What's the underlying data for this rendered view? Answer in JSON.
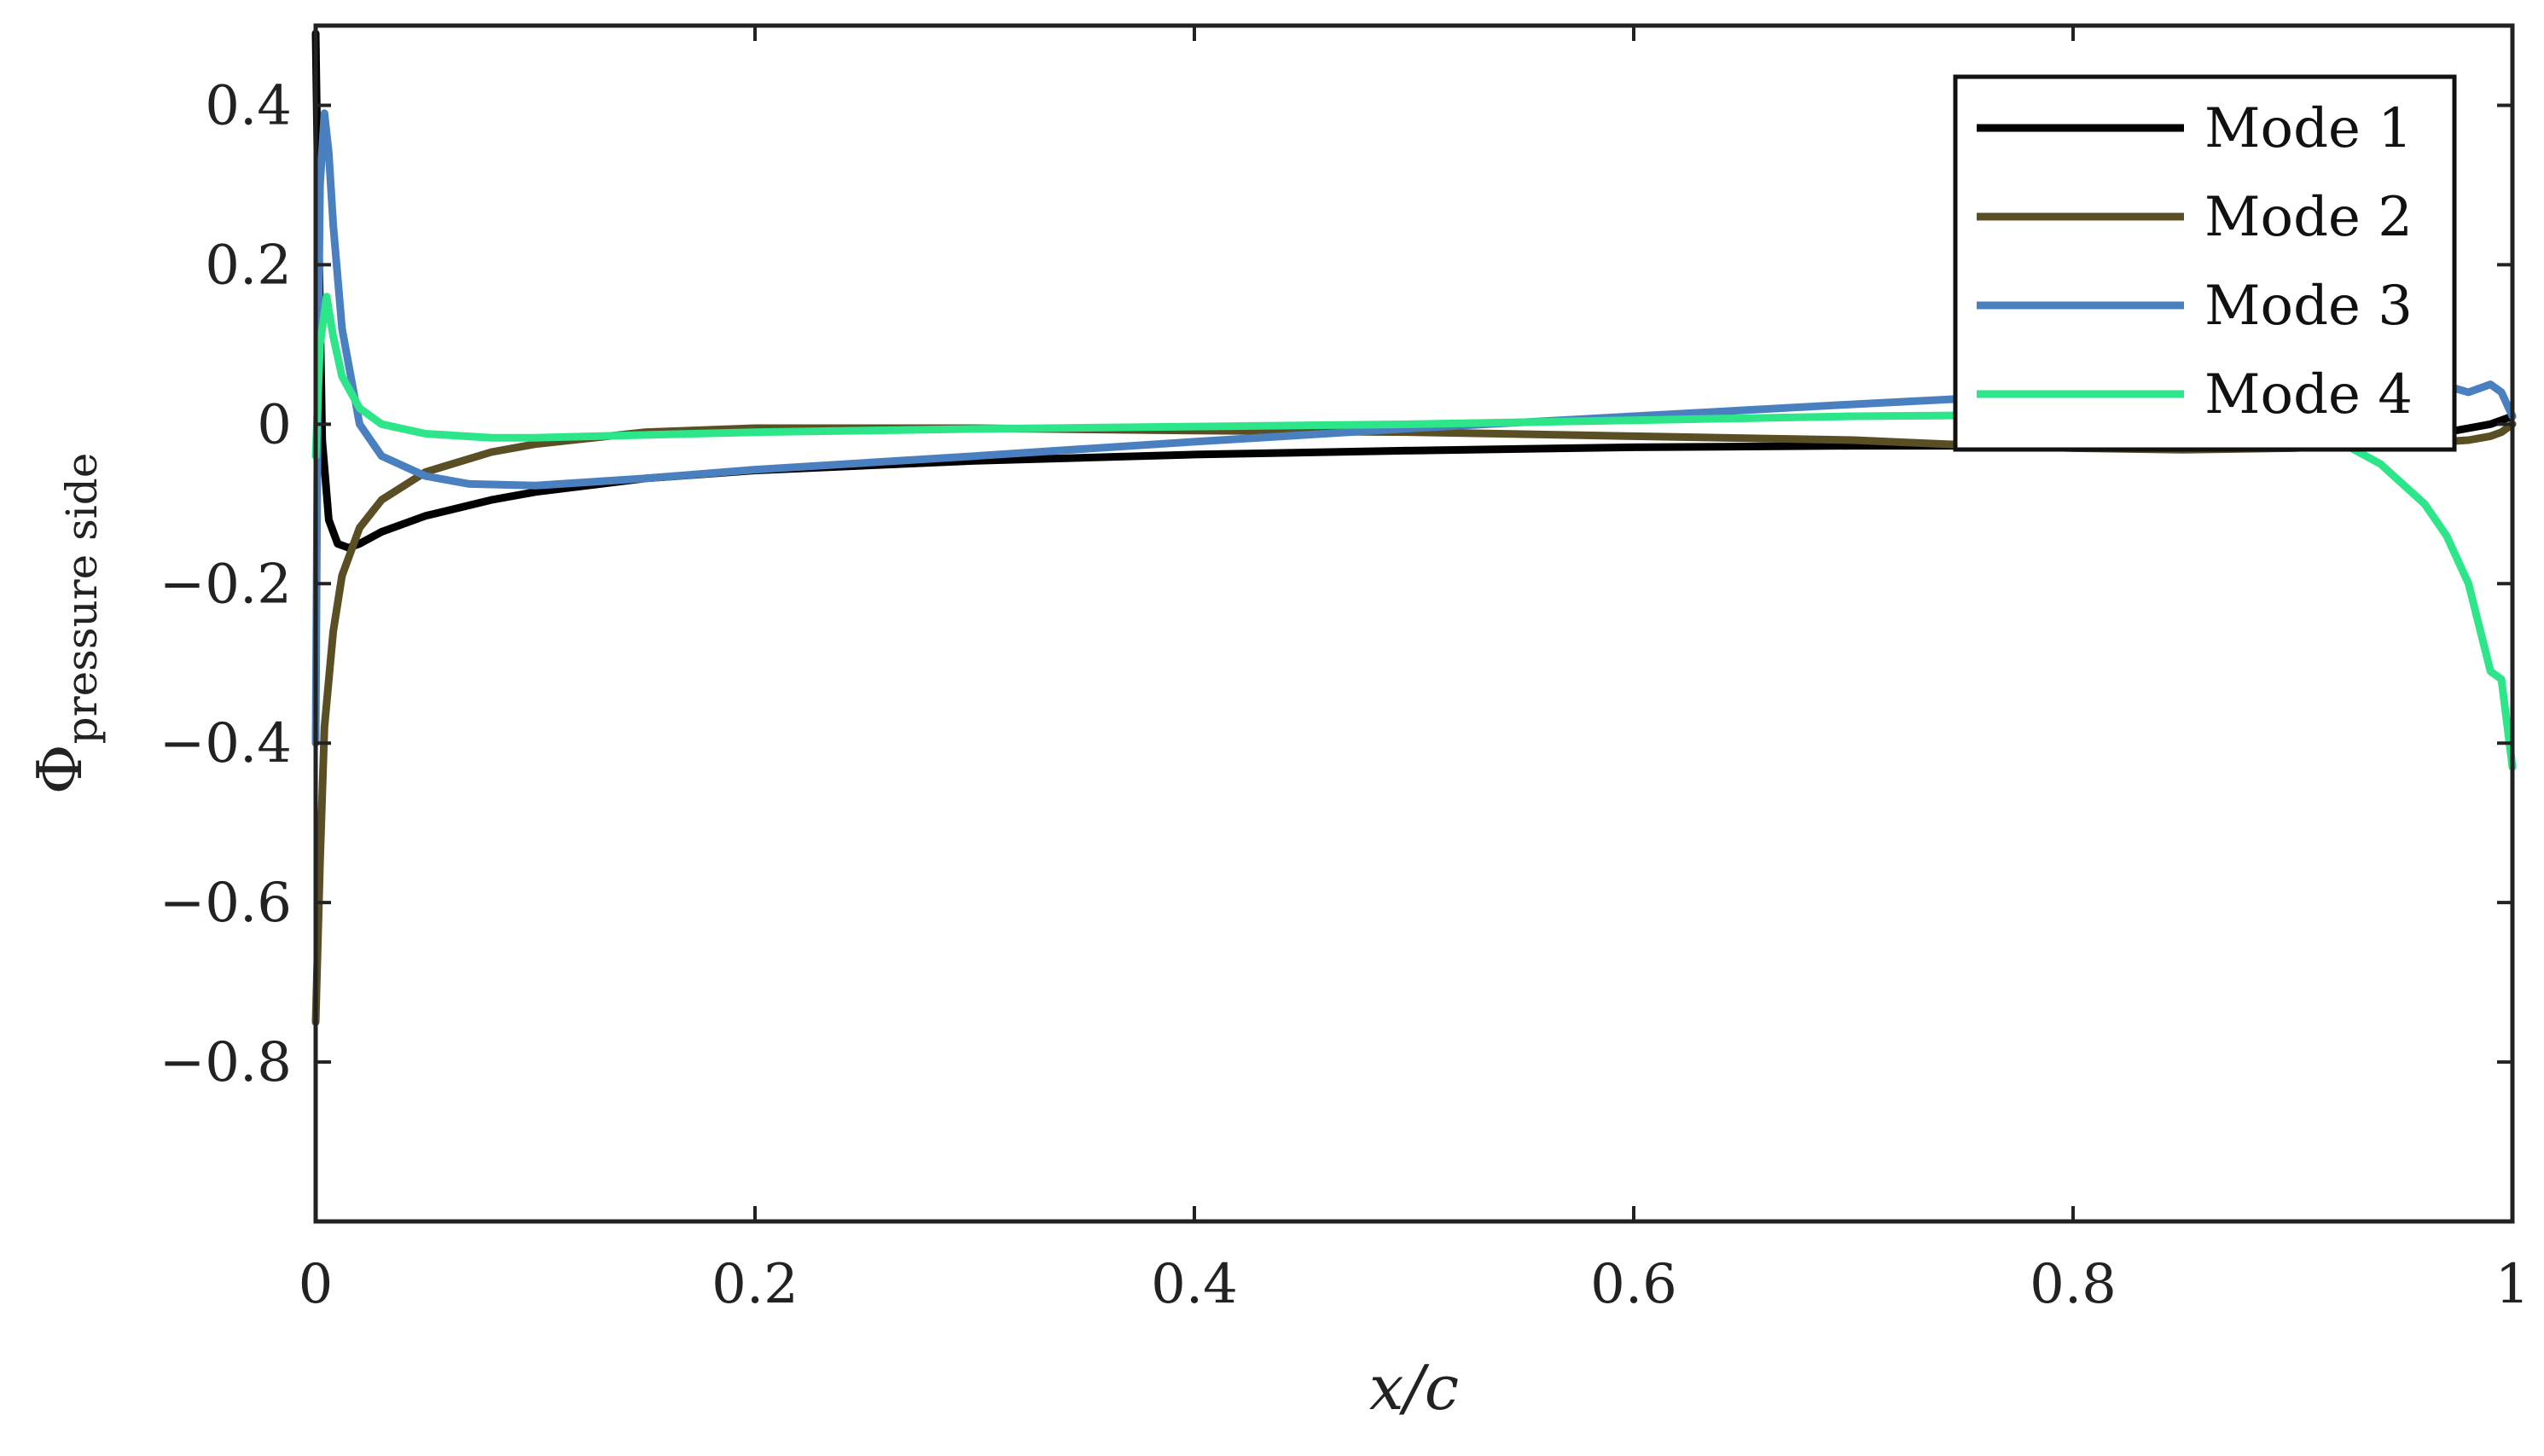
{
  "chart_data": {
    "type": "line",
    "xlabel": "x/c",
    "ylabel": "Φ",
    "ylabel_subscript": "pressure side",
    "xlim": [
      0,
      1
    ],
    "ylim": [
      -1.0,
      0.5
    ],
    "xticks": [
      0,
      0.2,
      0.4,
      0.6,
      0.8,
      1
    ],
    "xtick_labels": [
      "0",
      "0.2",
      "0.4",
      "0.6",
      "0.8",
      "1"
    ],
    "yticks": [
      0.4,
      0.2,
      0,
      -0.2,
      -0.4,
      -0.6,
      -0.8
    ],
    "ytick_labels": [
      "0.4",
      "0.2",
      "0",
      "−0.2",
      "−0.4",
      "−0.6",
      "−0.8"
    ],
    "grid": false,
    "legend_position": "top-right",
    "series": [
      {
        "name": "Mode 1",
        "color": "#000000",
        "points": [
          [
            0.0,
            0.49
          ],
          [
            0.001,
            0.3
          ],
          [
            0.003,
            -0.02
          ],
          [
            0.006,
            -0.12
          ],
          [
            0.01,
            -0.15
          ],
          [
            0.015,
            -0.155
          ],
          [
            0.02,
            -0.15
          ],
          [
            0.03,
            -0.135
          ],
          [
            0.05,
            -0.115
          ],
          [
            0.08,
            -0.095
          ],
          [
            0.1,
            -0.085
          ],
          [
            0.15,
            -0.068
          ],
          [
            0.2,
            -0.058
          ],
          [
            0.3,
            -0.046
          ],
          [
            0.4,
            -0.038
          ],
          [
            0.5,
            -0.033
          ],
          [
            0.6,
            -0.029
          ],
          [
            0.7,
            -0.027
          ],
          [
            0.8,
            -0.027
          ],
          [
            0.9,
            -0.025
          ],
          [
            0.95,
            -0.02
          ],
          [
            0.98,
            -0.005
          ],
          [
            0.99,
            0.0
          ],
          [
            0.995,
            0.005
          ],
          [
            1.0,
            0.01
          ]
        ]
      },
      {
        "name": "Mode 2",
        "color": "#5a4e25",
        "points": [
          [
            0.0,
            -0.75
          ],
          [
            0.002,
            -0.55
          ],
          [
            0.004,
            -0.38
          ],
          [
            0.008,
            -0.26
          ],
          [
            0.012,
            -0.19
          ],
          [
            0.02,
            -0.13
          ],
          [
            0.03,
            -0.095
          ],
          [
            0.05,
            -0.06
          ],
          [
            0.08,
            -0.035
          ],
          [
            0.1,
            -0.025
          ],
          [
            0.15,
            -0.01
          ],
          [
            0.2,
            -0.005
          ],
          [
            0.3,
            -0.005
          ],
          [
            0.4,
            -0.008
          ],
          [
            0.5,
            -0.01
          ],
          [
            0.6,
            -0.015
          ],
          [
            0.7,
            -0.02
          ],
          [
            0.75,
            -0.026
          ],
          [
            0.8,
            -0.03
          ],
          [
            0.85,
            -0.032
          ],
          [
            0.9,
            -0.03
          ],
          [
            0.95,
            -0.025
          ],
          [
            0.98,
            -0.02
          ],
          [
            0.99,
            -0.015
          ],
          [
            0.995,
            -0.01
          ],
          [
            1.0,
            0.0
          ]
        ]
      },
      {
        "name": "Mode 3",
        "color": "#4b80c0",
        "points": [
          [
            0.0,
            -0.4
          ],
          [
            0.001,
            0.05
          ],
          [
            0.002,
            0.3
          ],
          [
            0.004,
            0.39
          ],
          [
            0.006,
            0.34
          ],
          [
            0.008,
            0.25
          ],
          [
            0.012,
            0.12
          ],
          [
            0.02,
            0.0
          ],
          [
            0.03,
            -0.04
          ],
          [
            0.05,
            -0.065
          ],
          [
            0.07,
            -0.075
          ],
          [
            0.1,
            -0.077
          ],
          [
            0.15,
            -0.068
          ],
          [
            0.2,
            -0.057
          ],
          [
            0.3,
            -0.04
          ],
          [
            0.4,
            -0.022
          ],
          [
            0.5,
            -0.005
          ],
          [
            0.6,
            0.01
          ],
          [
            0.7,
            0.025
          ],
          [
            0.75,
            0.032
          ],
          [
            0.8,
            0.04
          ],
          [
            0.85,
            0.045
          ],
          [
            0.9,
            0.05
          ],
          [
            0.95,
            0.052
          ],
          [
            0.97,
            0.048
          ],
          [
            0.98,
            0.04
          ],
          [
            0.99,
            0.05
          ],
          [
            0.995,
            0.04
          ],
          [
            1.0,
            0.01
          ]
        ]
      },
      {
        "name": "Mode 4",
        "color": "#2ee68a",
        "points": [
          [
            0.0,
            -0.04
          ],
          [
            0.002,
            0.1
          ],
          [
            0.005,
            0.16
          ],
          [
            0.008,
            0.11
          ],
          [
            0.012,
            0.06
          ],
          [
            0.02,
            0.02
          ],
          [
            0.03,
            0.0
          ],
          [
            0.05,
            -0.012
          ],
          [
            0.08,
            -0.017
          ],
          [
            0.1,
            -0.017
          ],
          [
            0.2,
            -0.01
          ],
          [
            0.3,
            -0.006
          ],
          [
            0.4,
            -0.003
          ],
          [
            0.5,
            0.0
          ],
          [
            0.6,
            0.005
          ],
          [
            0.7,
            0.01
          ],
          [
            0.8,
            0.012
          ],
          [
            0.85,
            0.01
          ],
          [
            0.9,
            0.0
          ],
          [
            0.92,
            -0.02
          ],
          [
            0.94,
            -0.05
          ],
          [
            0.96,
            -0.1
          ],
          [
            0.97,
            -0.14
          ],
          [
            0.98,
            -0.2
          ],
          [
            0.99,
            -0.31
          ],
          [
            0.995,
            -0.32
          ],
          [
            1.0,
            -0.43
          ]
        ]
      }
    ]
  }
}
